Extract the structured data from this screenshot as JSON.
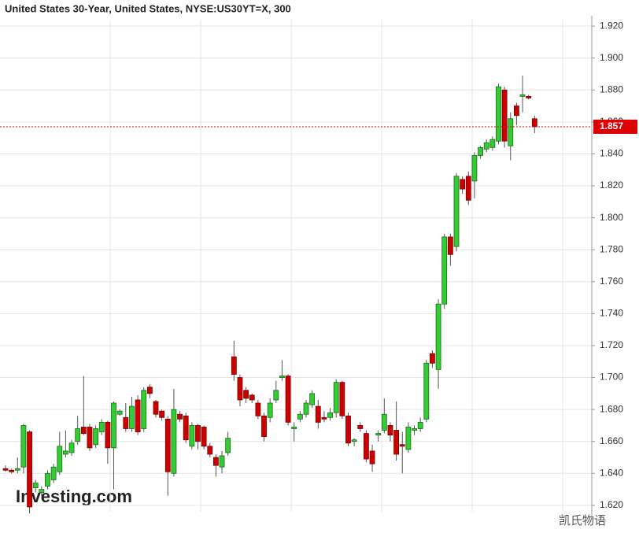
{
  "chart_data": {
    "type": "candlestick",
    "title": "United States 30-Year, United States, NYSE:US30YT=X, 300",
    "watermark": "Investing.com",
    "caption": "凯氏物语",
    "last_price": 1.857,
    "ylim": [
      1.616,
      1.924
    ],
    "yticks": [
      {
        "value": 1.62,
        "label": "1.620"
      },
      {
        "value": 1.64,
        "label": "1.640"
      },
      {
        "value": 1.66,
        "label": "1.660"
      },
      {
        "value": 1.68,
        "label": "1.680"
      },
      {
        "value": 1.7,
        "label": "1.700"
      },
      {
        "value": 1.72,
        "label": "1.720"
      },
      {
        "value": 1.74,
        "label": "1.740"
      },
      {
        "value": 1.76,
        "label": "1.760"
      },
      {
        "value": 1.78,
        "label": "1.780"
      },
      {
        "value": 1.8,
        "label": "1.800"
      },
      {
        "value": 1.82,
        "label": "1.820"
      },
      {
        "value": 1.84,
        "label": "1.840"
      },
      {
        "value": 1.86,
        "label": "1.860"
      },
      {
        "value": 1.88,
        "label": "1.880"
      },
      {
        "value": 1.9,
        "label": "1.900"
      },
      {
        "value": 1.92,
        "label": "1.920"
      }
    ],
    "grid": true,
    "up_color": "#33cc33",
    "down_color": "#cc0000",
    "open": [
      1.643,
      1.642,
      1.642,
      1.644,
      1.666,
      1.631,
      1.628,
      1.632,
      1.636,
      1.641,
      1.652,
      1.653,
      1.66,
      1.669,
      1.669,
      1.658,
      1.666,
      1.672,
      1.656,
      1.677,
      1.675,
      1.668,
      1.686,
      1.668,
      1.694,
      1.685,
      1.679,
      1.674,
      1.64,
      1.677,
      1.676,
      1.657,
      1.67,
      1.669,
      1.657,
      1.65,
      1.644,
      1.653,
      1.713,
      1.7,
      1.692,
      1.689,
      1.684,
      1.676,
      1.675,
      1.686,
      1.7,
      1.701,
      1.668,
      1.674,
      1.677,
      1.683,
      1.682,
      1.675,
      1.675,
      1.678,
      1.697,
      1.676,
      1.66,
      1.67,
      1.665,
      1.654,
      1.664,
      1.667,
      1.67,
      1.667,
      1.658,
      1.655,
      1.667,
      1.668,
      1.674,
      1.715,
      1.705,
      1.746,
      1.788,
      1.782,
      1.824,
      1.826,
      1.823,
      1.839,
      1.843,
      1.844,
      1.848,
      1.88,
      1.845,
      1.87,
      1.876,
      1.876,
      1.862
    ],
    "high": [
      1.645,
      1.643,
      1.65,
      1.671,
      1.667,
      1.636,
      1.632,
      1.642,
      1.646,
      1.666,
      1.667,
      1.661,
      1.676,
      1.701,
      1.671,
      1.67,
      1.674,
      1.673,
      1.685,
      1.68,
      1.684,
      1.688,
      1.689,
      1.694,
      1.696,
      1.686,
      1.68,
      1.676,
      1.693,
      1.679,
      1.678,
      1.672,
      1.671,
      1.67,
      1.659,
      1.652,
      1.654,
      1.666,
      1.723,
      1.702,
      1.694,
      1.69,
      1.686,
      1.678,
      1.687,
      1.698,
      1.711,
      1.702,
      1.672,
      1.679,
      1.686,
      1.692,
      1.686,
      1.679,
      1.681,
      1.699,
      1.698,
      1.678,
      1.662,
      1.672,
      1.667,
      1.658,
      1.667,
      1.687,
      1.672,
      1.685,
      1.666,
      1.672,
      1.67,
      1.675,
      1.711,
      1.717,
      1.749,
      1.79,
      1.79,
      1.828,
      1.826,
      1.829,
      1.841,
      1.845,
      1.849,
      1.851,
      1.884,
      1.882,
      1.866,
      1.872,
      1.889,
      1.877,
      1.864
    ],
    "low": [
      1.641,
      1.64,
      1.64,
      1.64,
      1.615,
      1.628,
      1.626,
      1.63,
      1.634,
      1.639,
      1.65,
      1.651,
      1.658,
      1.664,
      1.654,
      1.656,
      1.664,
      1.646,
      1.63,
      1.676,
      1.666,
      1.666,
      1.664,
      1.666,
      1.687,
      1.675,
      1.673,
      1.626,
      1.638,
      1.672,
      1.659,
      1.655,
      1.655,
      1.655,
      1.65,
      1.638,
      1.64,
      1.651,
      1.698,
      1.682,
      1.684,
      1.684,
      1.674,
      1.66,
      1.672,
      1.684,
      1.698,
      1.67,
      1.66,
      1.672,
      1.675,
      1.681,
      1.668,
      1.672,
      1.673,
      1.675,
      1.674,
      1.657,
      1.657,
      1.666,
      1.647,
      1.641,
      1.66,
      1.665,
      1.66,
      1.648,
      1.64,
      1.653,
      1.664,
      1.666,
      1.672,
      1.706,
      1.693,
      1.743,
      1.77,
      1.779,
      1.815,
      1.808,
      1.812,
      1.837,
      1.841,
      1.842,
      1.846,
      1.844,
      1.836,
      1.858,
      1.866,
      1.874,
      1.853
    ],
    "close": [
      1.642,
      1.641,
      1.643,
      1.67,
      1.619,
      1.634,
      1.63,
      1.64,
      1.644,
      1.657,
      1.654,
      1.659,
      1.668,
      1.665,
      1.656,
      1.668,
      1.672,
      1.656,
      1.684,
      1.679,
      1.668,
      1.682,
      1.666,
      1.692,
      1.69,
      1.677,
      1.675,
      1.641,
      1.68,
      1.674,
      1.661,
      1.67,
      1.66,
      1.657,
      1.652,
      1.645,
      1.651,
      1.662,
      1.702,
      1.686,
      1.687,
      1.686,
      1.676,
      1.663,
      1.684,
      1.692,
      1.701,
      1.672,
      1.669,
      1.677,
      1.684,
      1.69,
      1.672,
      1.674,
      1.678,
      1.697,
      1.676,
      1.659,
      1.661,
      1.668,
      1.649,
      1.646,
      1.665,
      1.677,
      1.664,
      1.652,
      1.657,
      1.669,
      1.668,
      1.672,
      1.709,
      1.709,
      1.746,
      1.788,
      1.777,
      1.826,
      1.818,
      1.811,
      1.839,
      1.844,
      1.847,
      1.849,
      1.882,
      1.848,
      1.862,
      1.864,
      1.877,
      1.875,
      1.857
    ]
  }
}
